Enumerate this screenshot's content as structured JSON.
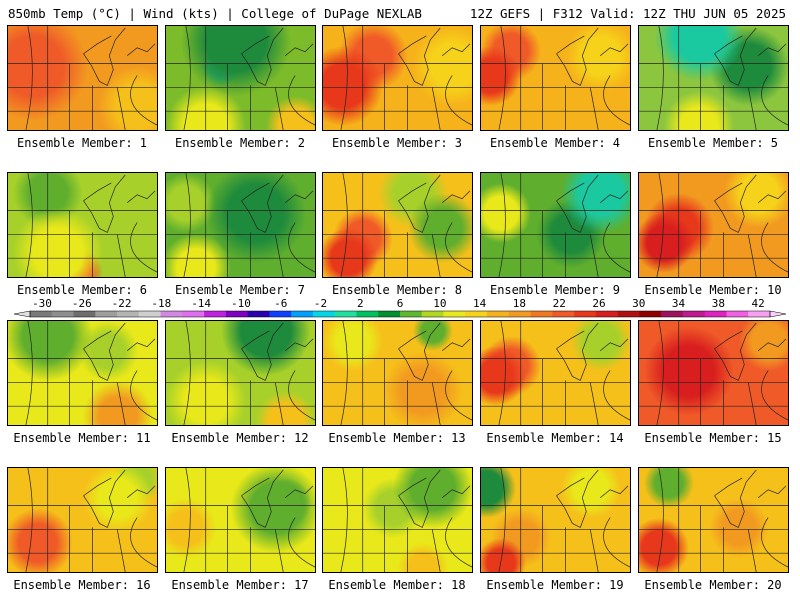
{
  "header": {
    "left": "850mb Temp (°C) | Wind (kts) | College of DuPage NEXLAB",
    "right": "12Z GEFS | F312 Valid: 12Z THU JUN 05 2025"
  },
  "panels": [
    {
      "label": "Ensemble Member: 1",
      "base": "#f29a20",
      "blobs": [
        {
          "c": "#f05a28",
          "x": 25,
          "y": 40,
          "r": 55
        },
        {
          "c": "#e8381c",
          "x": 30,
          "y": 45,
          "r": 28
        },
        {
          "c": "#f6c01a",
          "x": 130,
          "y": 80,
          "r": 40
        }
      ]
    },
    {
      "label": "Ensemble Member: 2",
      "base": "#7cbb2a",
      "blobs": [
        {
          "c": "#1e8a3c",
          "x": 70,
          "y": 15,
          "r": 55
        },
        {
          "c": "#2fb070",
          "x": 55,
          "y": 40,
          "r": 20
        },
        {
          "c": "#e8e81a",
          "x": 40,
          "y": 100,
          "r": 40
        },
        {
          "c": "#f6c01a",
          "x": 130,
          "y": 100,
          "r": 30
        }
      ]
    },
    {
      "label": "Ensemble Member: 3",
      "base": "#f6b21a",
      "blobs": [
        {
          "c": "#e8381c",
          "x": 20,
          "y": 60,
          "r": 40
        },
        {
          "c": "#f05a28",
          "x": 50,
          "y": 30,
          "r": 35
        },
        {
          "c": "#f6d21a",
          "x": 130,
          "y": 40,
          "r": 40
        }
      ]
    },
    {
      "label": "Ensemble Member: 4",
      "base": "#f6b21a",
      "blobs": [
        {
          "c": "#e8381c",
          "x": 10,
          "y": 50,
          "r": 30
        },
        {
          "c": "#f05a28",
          "x": 30,
          "y": 25,
          "r": 30
        },
        {
          "c": "#f6d21a",
          "x": 120,
          "y": 30,
          "r": 35
        }
      ]
    },
    {
      "label": "Ensemble Member: 5",
      "base": "#8cc63f",
      "blobs": [
        {
          "c": "#1bc9a0",
          "x": 60,
          "y": 10,
          "r": 45
        },
        {
          "c": "#1e8a3c",
          "x": 110,
          "y": 40,
          "r": 40
        },
        {
          "c": "#e8e81a",
          "x": 60,
          "y": 100,
          "r": 35
        }
      ]
    },
    {
      "label": "Ensemble Member: 6",
      "base": "#a7d12a",
      "blobs": [
        {
          "c": "#e8e81a",
          "x": 50,
          "y": 80,
          "r": 45
        },
        {
          "c": "#f05a28",
          "x": 70,
          "y": 100,
          "r": 25
        },
        {
          "c": "#5fae2e",
          "x": 40,
          "y": 20,
          "r": 35
        }
      ]
    },
    {
      "label": "Ensemble Member: 7",
      "base": "#5fae2e",
      "blobs": [
        {
          "c": "#1e8a3c",
          "x": 90,
          "y": 40,
          "r": 50
        },
        {
          "c": "#e8e81a",
          "x": 30,
          "y": 95,
          "r": 35
        },
        {
          "c": "#a7d12a",
          "x": 20,
          "y": 30,
          "r": 30
        }
      ]
    },
    {
      "label": "Ensemble Member: 8",
      "base": "#f6c01a",
      "blobs": [
        {
          "c": "#e8381c",
          "x": 25,
          "y": 85,
          "r": 30
        },
        {
          "c": "#f05a28",
          "x": 40,
          "y": 65,
          "r": 30
        },
        {
          "c": "#5fae2e",
          "x": 120,
          "y": 55,
          "r": 35
        },
        {
          "c": "#a7d12a",
          "x": 90,
          "y": 20,
          "r": 35
        }
      ]
    },
    {
      "label": "Ensemble Member: 9",
      "base": "#5fae2e",
      "blobs": [
        {
          "c": "#1bc9a0",
          "x": 120,
          "y": 20,
          "r": 40
        },
        {
          "c": "#1e8a3c",
          "x": 90,
          "y": 60,
          "r": 35
        },
        {
          "c": "#e8e81a",
          "x": 20,
          "y": 40,
          "r": 30
        }
      ]
    },
    {
      "label": "Ensemble Member: 10",
      "base": "#f29a20",
      "blobs": [
        {
          "c": "#d81e1e",
          "x": 25,
          "y": 70,
          "r": 30
        },
        {
          "c": "#e8381c",
          "x": 40,
          "y": 55,
          "r": 35
        },
        {
          "c": "#f6d21a",
          "x": 120,
          "y": 20,
          "r": 35
        }
      ]
    },
    {
      "label": "Ensemble Member: 11",
      "base": "#e8e81a",
      "blobs": [
        {
          "c": "#5fae2e",
          "x": 40,
          "y": 15,
          "r": 45
        },
        {
          "c": "#f29a20",
          "x": 110,
          "y": 95,
          "r": 35
        },
        {
          "c": "#a7d12a",
          "x": 100,
          "y": 30,
          "r": 30
        }
      ]
    },
    {
      "label": "Ensemble Member: 12",
      "base": "#a7d12a",
      "blobs": [
        {
          "c": "#1e8a3c",
          "x": 100,
          "y": 10,
          "r": 45
        },
        {
          "c": "#e8e81a",
          "x": 40,
          "y": 80,
          "r": 40
        },
        {
          "c": "#f6c01a",
          "x": 120,
          "y": 100,
          "r": 30
        }
      ]
    },
    {
      "label": "Ensemble Member: 13",
      "base": "#f6c01a",
      "blobs": [
        {
          "c": "#f29a20",
          "x": 100,
          "y": 70,
          "r": 40
        },
        {
          "c": "#e8e81a",
          "x": 30,
          "y": 20,
          "r": 30
        },
        {
          "c": "#5fae2e",
          "x": 110,
          "y": 10,
          "r": 20
        }
      ]
    },
    {
      "label": "Ensemble Member: 14",
      "base": "#f6c01a",
      "blobs": [
        {
          "c": "#e8381c",
          "x": 15,
          "y": 55,
          "r": 30
        },
        {
          "c": "#f05a28",
          "x": 30,
          "y": 45,
          "r": 30
        },
        {
          "c": "#a7d12a",
          "x": 120,
          "y": 20,
          "r": 30
        }
      ]
    },
    {
      "label": "Ensemble Member: 15",
      "base": "#f05a28",
      "blobs": [
        {
          "c": "#d81e1e",
          "x": 50,
          "y": 50,
          "r": 45
        },
        {
          "c": "#f29a20",
          "x": 130,
          "y": 20,
          "r": 30
        }
      ]
    },
    {
      "label": "Ensemble Member: 16",
      "base": "#f6c01a",
      "blobs": [
        {
          "c": "#f05a28",
          "x": 30,
          "y": 75,
          "r": 35
        },
        {
          "c": "#e8e81a",
          "x": 110,
          "y": 30,
          "r": 35
        },
        {
          "c": "#a7d12a",
          "x": 130,
          "y": 10,
          "r": 25
        }
      ]
    },
    {
      "label": "Ensemble Member: 17",
      "base": "#e8e81a",
      "blobs": [
        {
          "c": "#5fae2e",
          "x": 110,
          "y": 40,
          "r": 45
        },
        {
          "c": "#1e8a3c",
          "x": 120,
          "y": 35,
          "r": 25
        },
        {
          "c": "#f6c01a",
          "x": 20,
          "y": 60,
          "r": 30
        }
      ]
    },
    {
      "label": "Ensemble Member: 18",
      "base": "#e8e81a",
      "blobs": [
        {
          "c": "#5fae2e",
          "x": 110,
          "y": 20,
          "r": 40
        },
        {
          "c": "#a7d12a",
          "x": 70,
          "y": 40,
          "r": 30
        },
        {
          "c": "#f6c01a",
          "x": 100,
          "y": 100,
          "r": 25
        }
      ]
    },
    {
      "label": "Ensemble Member: 19",
      "base": "#f6c01a",
      "blobs": [
        {
          "c": "#1e8a3c",
          "x": 5,
          "y": 20,
          "r": 30
        },
        {
          "c": "#e8381c",
          "x": 20,
          "y": 95,
          "r": 25
        },
        {
          "c": "#f29a20",
          "x": 40,
          "y": 70,
          "r": 30
        },
        {
          "c": "#e8e81a",
          "x": 110,
          "y": 20,
          "r": 30
        }
      ]
    },
    {
      "label": "Ensemble Member: 20",
      "base": "#f6c01a",
      "blobs": [
        {
          "c": "#e8381c",
          "x": 20,
          "y": 80,
          "r": 30
        },
        {
          "c": "#5fae2e",
          "x": 30,
          "y": 15,
          "r": 25
        },
        {
          "c": "#f29a20",
          "x": 100,
          "y": 60,
          "r": 30
        }
      ]
    }
  ],
  "colorbar": {
    "labels": [
      "-30",
      "-26",
      "-22",
      "-18",
      "-14",
      "-10",
      "-6",
      "-2",
      "2",
      "6",
      "10",
      "14",
      "18",
      "22",
      "26",
      "30",
      "34",
      "38",
      "42"
    ],
    "colors": [
      "#7a7a7a",
      "#8e8e8e",
      "#6e6e6e",
      "#9e9e9e",
      "#b4b4b4",
      "#cfcfcf",
      "#d088e0",
      "#e06cf0",
      "#c020e0",
      "#8000c0",
      "#2a00b0",
      "#1040ff",
      "#00a0ff",
      "#00d8e8",
      "#20e0a0",
      "#00c060",
      "#009030",
      "#60b830",
      "#b0d820",
      "#e8e81a",
      "#f6d21a",
      "#f6b21a",
      "#f29a20",
      "#f07820",
      "#f05a28",
      "#e8381c",
      "#d81e1e",
      "#b01010",
      "#900000",
      "#a01060",
      "#c01890",
      "#e020c0",
      "#f060e0",
      "#f8a0f0"
    ]
  }
}
